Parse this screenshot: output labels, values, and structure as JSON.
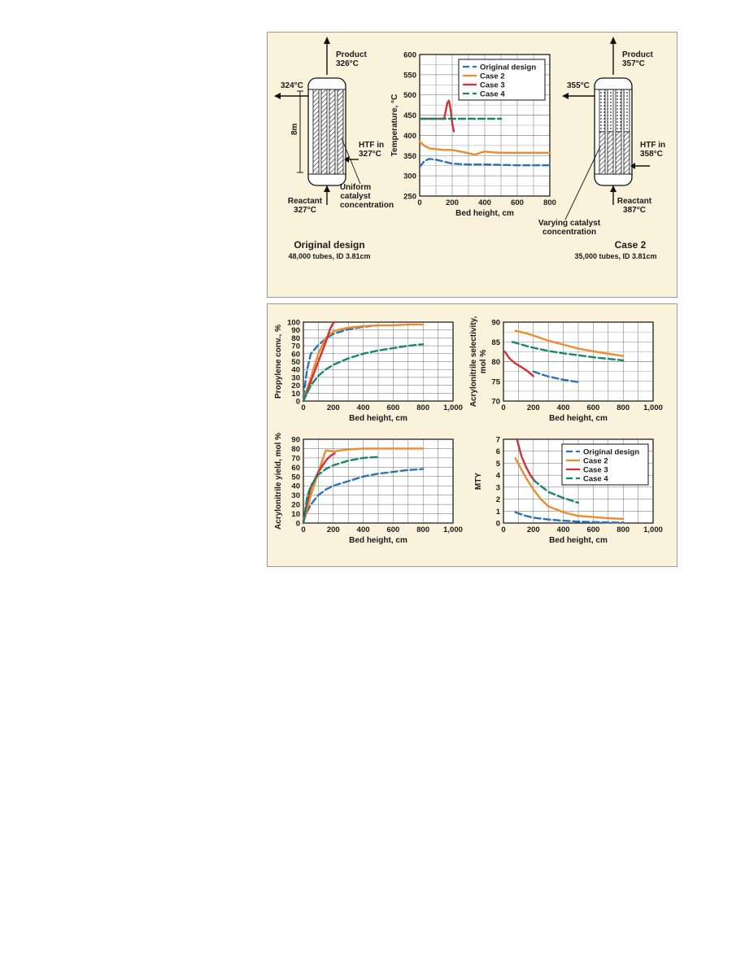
{
  "colors": {
    "panel_bg": "#fbf2dc",
    "original": "#2b73b8",
    "case2": "#ee8c2d",
    "case3": "#d0323a",
    "case4": "#16876a"
  },
  "reactor_left": {
    "product_label": "Product",
    "product_temp": "326°C",
    "side_out_temp": "324°C",
    "height_label": "8m",
    "htf_label": "HTF in",
    "htf_temp": "327°C",
    "catalyst_label": [
      "Uniform",
      "catalyst",
      "concentration"
    ],
    "reactant_label": "Reactant",
    "reactant_temp": "327°C",
    "caption_title": "Original design",
    "caption_sub": "48,000 tubes, ID 3.81cm"
  },
  "reactor_right": {
    "product_label": "Product",
    "product_temp": "357°C",
    "side_out_temp": "355°C",
    "htf_label": "HTF in",
    "htf_temp": "358°C",
    "catalyst_label": [
      "Varying catalyst",
      "concentration"
    ],
    "reactant_label": "Reactant",
    "reactant_temp": "387°C",
    "caption_title": "Case 2",
    "caption_sub": "35,000 tubes, ID 3.81cm"
  },
  "chart_data": [
    {
      "id": "temperature",
      "type": "line",
      "xlabel": "Bed height, cm",
      "ylabel": "Temperature, °C",
      "xlim": [
        0,
        800
      ],
      "ylim": [
        250,
        600
      ],
      "xticks": [
        "0",
        "200",
        "400",
        "600",
        "800"
      ],
      "yticks": [
        "250",
        "300",
        "350",
        "400",
        "450",
        "500",
        "550",
        "600"
      ],
      "grid": true,
      "legend": "top-right",
      "legend_entries": [
        "Original design",
        "Case 2",
        "Case 3",
        "Case 4"
      ],
      "series": [
        {
          "name": "Original design",
          "color": "#2b73b8",
          "dash": "8,4",
          "x": [
            0,
            30,
            60,
            100,
            150,
            200,
            300,
            400,
            500,
            600,
            700,
            800
          ],
          "y": [
            322,
            337,
            342,
            340,
            335,
            330,
            328,
            328,
            327,
            326,
            326,
            326
          ]
        },
        {
          "name": "Case 2",
          "color": "#ee8c2d",
          "dash": "",
          "x": [
            0,
            30,
            60,
            100,
            150,
            200,
            250,
            300,
            340,
            380,
            400,
            450,
            500,
            600,
            700,
            800
          ],
          "y": [
            385,
            374,
            368,
            366,
            364,
            364,
            360,
            356,
            352,
            358,
            360,
            358,
            357,
            357,
            357,
            357
          ]
        },
        {
          "name": "Case 3",
          "color": "#d0323a",
          "dash": "",
          "x": [
            0,
            50,
            100,
            150,
            160,
            170,
            180,
            190,
            200,
            210
          ],
          "y": [
            441,
            441,
            441,
            441,
            460,
            480,
            486,
            465,
            430,
            410
          ]
        },
        {
          "name": "Case 4",
          "color": "#16876a",
          "dash": "8,4",
          "x": [
            0,
            100,
            200,
            300,
            400,
            500
          ],
          "y": [
            441,
            441,
            441,
            441,
            441,
            441
          ]
        }
      ]
    },
    {
      "id": "conversion",
      "type": "line",
      "xlabel": "Bed height, cm",
      "ylabel": "Propylene conv., %",
      "xlim": [
        0,
        1000
      ],
      "ylim": [
        0,
        100
      ],
      "xticks": [
        "0",
        "200",
        "400",
        "600",
        "800",
        "1,000"
      ],
      "yticks": [
        "0",
        "10",
        "20",
        "30",
        "40",
        "50",
        "60",
        "70",
        "80",
        "90",
        "100"
      ],
      "grid": true,
      "series": [
        {
          "name": "Original design",
          "color": "#2b73b8",
          "dash": "8,4",
          "x": [
            0,
            25,
            50,
            100,
            150,
            200,
            300,
            400,
            500
          ],
          "y": [
            5,
            40,
            60,
            71,
            79,
            85,
            91,
            94,
            96
          ]
        },
        {
          "name": "Case 2",
          "color": "#ee8c2d",
          "dash": "",
          "x": [
            0,
            50,
            100,
            150,
            200,
            250,
            300,
            400,
            500,
            600,
            700,
            800
          ],
          "y": [
            0,
            30,
            60,
            80,
            88,
            91,
            93,
            95,
            96,
            96,
            97,
            97
          ]
        },
        {
          "name": "Case 3",
          "color": "#d0323a",
          "dash": "",
          "x": [
            0,
            50,
            100,
            150,
            180,
            200,
            210
          ],
          "y": [
            0,
            25,
            50,
            75,
            92,
            99,
            100
          ]
        },
        {
          "name": "Case 4",
          "color": "#16876a",
          "dash": "8,4",
          "x": [
            0,
            50,
            100,
            150,
            200,
            300,
            400,
            500,
            600,
            700,
            800
          ],
          "y": [
            0,
            20,
            32,
            40,
            46,
            54,
            60,
            64,
            67,
            70,
            72
          ]
        }
      ]
    },
    {
      "id": "selectivity",
      "type": "line",
      "xlabel": "Bed height, cm",
      "ylabel": "Acrylonitrile selectivity, mol %",
      "xlim": [
        0,
        1000
      ],
      "ylim": [
        70,
        90
      ],
      "xticks": [
        "0",
        "200",
        "400",
        "600",
        "800",
        "1,000"
      ],
      "yticks": [
        "70",
        "75",
        "80",
        "85",
        "90"
      ],
      "grid": true,
      "series": [
        {
          "name": "Original design",
          "color": "#2b73b8",
          "dash": "8,4",
          "x": [
            200,
            250,
            300,
            400,
            500
          ],
          "y": [
            77.5,
            76.8,
            76.2,
            75.4,
            74.8
          ]
        },
        {
          "name": "Case 2",
          "color": "#ee8c2d",
          "dash": "",
          "x": [
            80,
            150,
            200,
            300,
            400,
            500,
            600,
            700,
            800
          ],
          "y": [
            87.8,
            87.2,
            86.6,
            85.3,
            84.3,
            83.3,
            82.6,
            82,
            81.4
          ]
        },
        {
          "name": "Case 3",
          "color": "#d0323a",
          "dash": "",
          "x": [
            10,
            40,
            80,
            120,
            160,
            200
          ],
          "y": [
            82.5,
            80.8,
            79.5,
            78.6,
            77.6,
            76.3
          ]
        },
        {
          "name": "Case 4",
          "color": "#16876a",
          "dash": "8,4",
          "x": [
            60,
            150,
            200,
            300,
            400,
            500,
            600,
            700,
            800
          ],
          "y": [
            85,
            84,
            83.5,
            82.7,
            82.1,
            81.6,
            81.1,
            80.7,
            80.3
          ]
        }
      ]
    },
    {
      "id": "yield",
      "type": "line",
      "xlabel": "Bed height, cm",
      "ylabel": "Acrylonitrile yield, mol %",
      "xlim": [
        0,
        1000
      ],
      "ylim": [
        0,
        90
      ],
      "xticks": [
        "0",
        "200",
        "400",
        "600",
        "800",
        "1,000"
      ],
      "yticks": [
        "0",
        "10",
        "20",
        "30",
        "40",
        "50",
        "60",
        "70",
        "80",
        "90"
      ],
      "grid": true,
      "series": [
        {
          "name": "Original design",
          "color": "#2b73b8",
          "dash": "8,4",
          "x": [
            0,
            25,
            50,
            100,
            150,
            200,
            300,
            400,
            500,
            600,
            700,
            800
          ],
          "y": [
            2,
            12,
            20,
            30,
            36,
            40,
            45,
            50,
            53,
            55,
            57,
            58
          ]
        },
        {
          "name": "Case 2",
          "color": "#ee8c2d",
          "dash": "",
          "x": [
            0,
            50,
            100,
            150,
            200,
            250,
            300,
            400,
            500,
            600,
            700,
            800
          ],
          "y": [
            0,
            30,
            55,
            78,
            77,
            78,
            79,
            80,
            80,
            80,
            80,
            80
          ]
        },
        {
          "name": "Case 3",
          "color": "#d0323a",
          "dash": "",
          "x": [
            0,
            25,
            50,
            100,
            150,
            180,
            200,
            210
          ],
          "y": [
            0,
            22,
            38,
            55,
            67,
            72,
            74,
            75
          ]
        },
        {
          "name": "Case 4",
          "color": "#16876a",
          "dash": "8,4",
          "x": [
            0,
            25,
            50,
            100,
            150,
            200,
            300,
            400,
            500
          ],
          "y": [
            0,
            28,
            40,
            52,
            58,
            62,
            67,
            70,
            71
          ]
        }
      ]
    },
    {
      "id": "mty",
      "type": "line",
      "xlabel": "Bed height, cm",
      "ylabel": "MTY",
      "xlim": [
        0,
        1000
      ],
      "ylim": [
        0,
        7
      ],
      "xticks": [
        "0",
        "200",
        "400",
        "600",
        "800",
        "1,000"
      ],
      "yticks": [
        "0",
        "1",
        "2",
        "3",
        "4",
        "5",
        "6",
        "7"
      ],
      "grid": true,
      "legend": "top-right",
      "legend_entries": [
        "Original design",
        "Case 2",
        "Case 3",
        "Case 4"
      ],
      "series": [
        {
          "name": "Original design",
          "color": "#2b73b8",
          "dash": "8,4",
          "x": [
            80,
            150,
            200,
            300,
            400,
            500,
            600,
            700,
            800
          ],
          "y": [
            0.9,
            0.6,
            0.45,
            0.3,
            0.2,
            0.12,
            0.08,
            0.05,
            0.05
          ]
        },
        {
          "name": "Case 2",
          "color": "#ee8c2d",
          "dash": "",
          "x": [
            80,
            150,
            200,
            250,
            300,
            400,
            500,
            600,
            700,
            800
          ],
          "y": [
            5.4,
            3.8,
            2.8,
            2.0,
            1.4,
            0.9,
            0.6,
            0.5,
            0.4,
            0.35
          ]
        },
        {
          "name": "Case 3",
          "color": "#d0323a",
          "dash": "",
          "x": [
            90,
            120,
            150,
            180,
            210
          ],
          "y": [
            7,
            5.6,
            4.7,
            4.0,
            3.5
          ]
        },
        {
          "name": "Case 4",
          "color": "#16876a",
          "dash": "8,4",
          "x": [
            200,
            250,
            300,
            400,
            500
          ],
          "y": [
            3.6,
            3.1,
            2.6,
            2.1,
            1.7
          ]
        }
      ]
    }
  ]
}
